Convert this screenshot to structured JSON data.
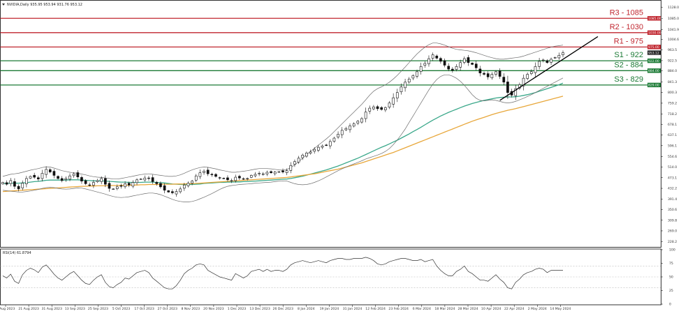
{
  "header": {
    "symbol_line": "NVIDIA,Daily  935.95 953.94 931.76 953.12"
  },
  "indicator": {
    "label": "RSI(14) 61.8794"
  },
  "colors": {
    "resistance": "#c0262f",
    "support": "#1b7a35",
    "candle": "#111111",
    "bollinger": "#6d6d6d",
    "ma_teal": "#3aa88a",
    "ma_orange": "#e8a73a",
    "trendline": "#000000",
    "rsi": "#333333"
  },
  "chart_data": [
    {
      "type": "candlestick",
      "title": "NVIDIA,Daily  935.95 953.94 931.76 953.12",
      "ylim": [
        210,
        1150
      ],
      "y_ticks": [
        1128.0,
        1085.0,
        1041.9,
        1004.6,
        963.5,
        922.5,
        884.0,
        841.3,
        800.3,
        759.2,
        718.2,
        678.1,
        637.1,
        596.1,
        554.6,
        514.0,
        473.1,
        432.2,
        391.4,
        350.6,
        309.8,
        269.0,
        228.2
      ],
      "x_ticks": [
        "9 Aug 2023",
        "21 Aug 2023",
        "31 Aug 2023",
        "13 Sep 2023",
        "25 Sep 2023",
        "5 Oct 2023",
        "17 Oct 2023",
        "27 Oct 2023",
        "8 Nov 2023",
        "20 Nov 2023",
        "1 Dec 2023",
        "13 Dec 2023",
        "26 Dec 2023",
        "8 Jan 2024",
        "19 Jan 2024",
        "31 Jan 2024",
        "12 Feb 2024",
        "23 Feb 2024",
        "6 Mar 2024",
        "18 Mar 2024",
        "28 Mar 2024",
        "10 Apr 2024",
        "22 Apr 2024",
        "2 May 2024",
        "14 May 2024"
      ],
      "levels": [
        {
          "label": "R3 - 1085",
          "value": 1085,
          "kind": "resistance",
          "tag": "1085.00"
        },
        {
          "label": "R2 - 1030",
          "value": 1030,
          "kind": "resistance",
          "tag": "1030.00"
        },
        {
          "label": "R1 - 975",
          "value": 975,
          "kind": "resistance",
          "tag": "975.00"
        },
        {
          "label": "S1 - 922",
          "value": 922,
          "kind": "support",
          "tag": "922.00"
        },
        {
          "label": "S2 - 884",
          "value": 884,
          "kind": "support",
          "tag": "884.00"
        },
        {
          "label": "S3 - 829",
          "value": 829,
          "kind": "support",
          "tag": "829.00"
        }
      ],
      "last_price_tag": "953.12",
      "series": [
        {
          "name": "",
          "kind": "close",
          "values": [
            455,
            448,
            462,
            440,
            430,
            452,
            470,
            478,
            475,
            468,
            490,
            505,
            495,
            482,
            470,
            462,
            470,
            480,
            488,
            476,
            460,
            450,
            445,
            455,
            462,
            470,
            448,
            432,
            430,
            438,
            440,
            450,
            445,
            455,
            465,
            468,
            472,
            470,
            458,
            450,
            438,
            425,
            418,
            415,
            420,
            430,
            445,
            452,
            460,
            480,
            492,
            498,
            488,
            484,
            478,
            472,
            470,
            465,
            462,
            475,
            472,
            468,
            470,
            482,
            486,
            490,
            488,
            494,
            492,
            495,
            496,
            495,
            500,
            520,
            535,
            548,
            560,
            568,
            572,
            582,
            590,
            595,
            598,
            612,
            625,
            640,
            655,
            662,
            672,
            680,
            690,
            700,
            725,
            740,
            745,
            738,
            735,
            742,
            760,
            780,
            800,
            822,
            840,
            852,
            865,
            880,
            900,
            912,
            930,
            945,
            932,
            920,
            905,
            890,
            885,
            900,
            915,
            930,
            915,
            908,
            895,
            875,
            870,
            860,
            870,
            880,
            862,
            840,
            800,
            790,
            815,
            830,
            855,
            870,
            880,
            900,
            920,
            925,
            915,
            928,
            935,
            943,
            953
          ]
        },
        {
          "name": "",
          "kind": "moving-average-teal",
          "values": [
            450,
            451,
            452,
            452,
            452,
            453,
            454,
            456,
            458,
            459,
            461,
            463,
            464,
            464,
            464,
            464,
            464,
            465,
            465,
            465,
            464,
            463,
            462,
            461,
            461,
            461,
            460,
            459,
            458,
            457,
            456,
            456,
            455,
            455,
            455,
            455,
            456,
            456,
            456,
            455,
            454,
            453,
            451,
            449,
            448,
            447,
            447,
            447,
            447,
            448,
            449,
            451,
            452,
            453,
            454,
            455,
            455,
            456,
            456,
            457,
            457,
            458,
            458,
            459,
            460,
            461,
            462,
            463,
            464,
            465,
            466,
            467,
            468,
            470,
            473,
            476,
            479,
            483,
            487,
            491,
            495,
            499,
            503,
            508,
            513,
            518,
            524,
            530,
            536,
            542,
            548,
            555,
            562,
            569,
            576,
            583,
            590,
            596,
            603,
            610,
            617,
            625,
            633,
            641,
            650,
            658,
            667,
            676,
            685,
            694,
            702,
            710,
            717,
            724,
            730,
            736,
            742,
            748,
            753,
            758,
            762,
            766,
            770,
            773,
            776,
            779,
            781,
            782,
            783,
            783,
            784,
            786,
            789,
            792,
            796,
            800,
            805,
            810,
            815,
            820,
            825,
            830,
            836
          ]
        },
        {
          "name": "",
          "kind": "moving-average-orange",
          "values": [
            420,
            421,
            422,
            423,
            424,
            425,
            426,
            427,
            428,
            429,
            430,
            431,
            432,
            433,
            434,
            435,
            436,
            437,
            438,
            439,
            440,
            440,
            441,
            441,
            442,
            442,
            442,
            443,
            443,
            443,
            444,
            444,
            444,
            445,
            445,
            446,
            446,
            447,
            447,
            447,
            448,
            448,
            448,
            448,
            449,
            449,
            449,
            450,
            450,
            451,
            452,
            453,
            454,
            455,
            456,
            457,
            458,
            459,
            460,
            461,
            462,
            463,
            464,
            465,
            466,
            467,
            468,
            469,
            470,
            471,
            472,
            473,
            474,
            476,
            478,
            480,
            482,
            484,
            486,
            488,
            491,
            494,
            497,
            500,
            503,
            506,
            510,
            514,
            518,
            522,
            526,
            530,
            535,
            540,
            545,
            550,
            555,
            560,
            565,
            570,
            576,
            582,
            588,
            594,
            600,
            606,
            612,
            618,
            624,
            630,
            636,
            642,
            648,
            654,
            660,
            666,
            672,
            678,
            684,
            690,
            695,
            700,
            705,
            710,
            715,
            720,
            724,
            728,
            732,
            735,
            738,
            742,
            746,
            750,
            754,
            758,
            762,
            766,
            770,
            774,
            778,
            782,
            786
          ]
        },
        {
          "name": "",
          "kind": "bollinger-upper",
          "values": [
            478,
            482,
            486,
            488,
            490,
            494,
            498,
            502,
            505,
            508,
            512,
            515,
            514,
            510,
            505,
            500,
            497,
            494,
            492,
            490,
            487,
            484,
            480,
            477,
            475,
            474,
            472,
            470,
            468,
            468,
            470,
            473,
            476,
            479,
            482,
            485,
            487,
            488,
            486,
            484,
            482,
            480,
            478,
            478,
            480,
            484,
            490,
            497,
            503,
            508,
            512,
            514,
            513,
            510,
            507,
            503,
            500,
            497,
            494,
            494,
            496,
            498,
            500,
            503,
            506,
            508,
            508,
            508,
            507,
            505,
            503,
            502,
            504,
            512,
            522,
            534,
            548,
            562,
            574,
            586,
            598,
            610,
            622,
            635,
            650,
            665,
            680,
            695,
            710,
            725,
            740,
            755,
            772,
            790,
            805,
            815,
            822,
            830,
            840,
            852,
            866,
            882,
            898,
            915,
            932,
            948,
            962,
            974,
            984,
            990,
            990,
            987,
            982,
            976,
            970,
            966,
            964,
            962,
            960,
            957,
            953,
            948,
            943,
            938,
            934,
            930,
            928,
            928,
            930,
            932,
            934,
            936,
            940,
            945,
            950,
            955,
            960,
            965,
            970,
            974,
            978,
            980,
            982
          ]
        },
        {
          "name": "",
          "kind": "bollinger-lower",
          "values": [
            425,
            423,
            421,
            420,
            418,
            418,
            420,
            422,
            425,
            428,
            432,
            435,
            436,
            435,
            432,
            430,
            429,
            430,
            432,
            434,
            433,
            430,
            426,
            422,
            418,
            414,
            410,
            405,
            401,
            398,
            397,
            398,
            400,
            403,
            406,
            409,
            412,
            414,
            414,
            412,
            408,
            402,
            396,
            390,
            385,
            382,
            380,
            380,
            382,
            386,
            392,
            398,
            405,
            412,
            420,
            428,
            435,
            440,
            443,
            445,
            447,
            448,
            449,
            450,
            452,
            453,
            454,
            455,
            456,
            458,
            460,
            461,
            460,
            455,
            450,
            447,
            446,
            447,
            450,
            455,
            461,
            468,
            476,
            484,
            492,
            500,
            507,
            514,
            520,
            526,
            532,
            538,
            545,
            550,
            555,
            560,
            566,
            574,
            585,
            600,
            618,
            638,
            660,
            685,
            710,
            735,
            760,
            785,
            810,
            832,
            850,
            862,
            868,
            868,
            863,
            855,
            843,
            828,
            810,
            792,
            778,
            770,
            768,
            770,
            772,
            770,
            766,
            762,
            760,
            762,
            766,
            772,
            778,
            785,
            792,
            800,
            808,
            816,
            824,
            832,
            840,
            848,
            856
          ]
        }
      ],
      "trendline": {
        "from": {
          "x": "22 Apr 2024",
          "y": 770
        },
        "to": {
          "x": "beyond 14 May 2024",
          "y": 1015
        }
      }
    },
    {
      "type": "line",
      "title": "RSI(14) 61.8794",
      "ylim": [
        0,
        100
      ],
      "y_ticks": [
        100,
        75,
        50,
        25,
        0
      ],
      "x_ticks": [
        "9 Aug 2023",
        "21 Aug 2023",
        "31 Aug 2023",
        "13 Sep 2023",
        "25 Sep 2023",
        "5 Oct 2023",
        "17 Oct 2023",
        "27 Oct 2023",
        "8 Nov 2023",
        "20 Nov 2023",
        "1 Dec 2023",
        "13 Dec 2023",
        "26 Dec 2023",
        "8 Jan 2024",
        "19 Jan 2024",
        "31 Jan 2024",
        "12 Feb 2024",
        "23 Feb 2024",
        "6 Mar 2024",
        "18 Mar 2024",
        "28 Mar 2024",
        "10 Apr 2024",
        "22 Apr 2024",
        "2 May 2024",
        "14 May 2024"
      ],
      "series": [
        {
          "name": "RSI(14)",
          "values": [
            52,
            48,
            55,
            42,
            38,
            54,
            62,
            66,
            63,
            58,
            68,
            72,
            64,
            55,
            48,
            44,
            50,
            56,
            60,
            52,
            44,
            38,
            36,
            44,
            50,
            54,
            40,
            32,
            30,
            36,
            40,
            48,
            46,
            52,
            58,
            60,
            62,
            58,
            48,
            42,
            36,
            30,
            28,
            28,
            34,
            44,
            56,
            62,
            66,
            72,
            74,
            72,
            62,
            58,
            54,
            50,
            48,
            46,
            44,
            56,
            52,
            48,
            52,
            60,
            62,
            64,
            60,
            64,
            60,
            62,
            62,
            60,
            64,
            72,
            76,
            78,
            80,
            78,
            76,
            78,
            80,
            78,
            76,
            80,
            82,
            84,
            84,
            82,
            82,
            84,
            84,
            84,
            86,
            84,
            80,
            74,
            72,
            74,
            78,
            80,
            82,
            84,
            84,
            82,
            80,
            80,
            82,
            78,
            80,
            82,
            70,
            62,
            56,
            52,
            52,
            60,
            64,
            70,
            60,
            56,
            50,
            44,
            44,
            42,
            48,
            54,
            46,
            40,
            30,
            28,
            40,
            46,
            54,
            58,
            60,
            64,
            66,
            64,
            58,
            62,
            62,
            62,
            62
          ]
        }
      ]
    }
  ]
}
